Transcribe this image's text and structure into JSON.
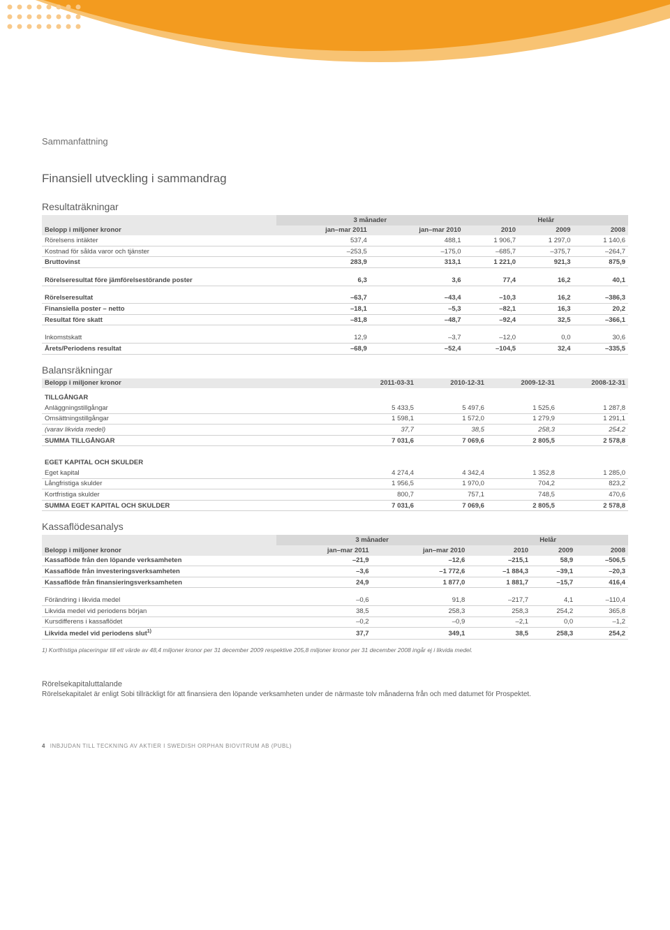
{
  "header_graphic": {
    "bg": "#ffffff",
    "arc_main": "#f39b1f",
    "arc_light": "#f8c373",
    "dots": "#f8c98a"
  },
  "section_label": "Sammanfattning",
  "main_title": "Finansiell utveckling i sammandrag",
  "tables": {
    "income": {
      "title": "Resultaträkningar",
      "belopp_label": "Belopp i miljoner kronor",
      "group1": "3 månader",
      "group2": "Helår",
      "cols": [
        "jan–mar 2011",
        "jan–mar 2010",
        "2010",
        "2009",
        "2008"
      ],
      "rows": [
        {
          "label": "Rörelsens intäkter",
          "v": [
            "537,4",
            "488,1",
            "1 906,7",
            "1 297,0",
            "1 140,6"
          ]
        },
        {
          "label": "Kostnad för sålda varor och tjänster",
          "v": [
            "–253,5",
            "–175,0",
            "–685,7",
            "–375,7",
            "–264,7"
          ]
        },
        {
          "label": "Bruttovinst",
          "v": [
            "283,9",
            "313,1",
            "1 221,0",
            "921,3",
            "875,9"
          ],
          "bold": true
        }
      ],
      "rows2": [
        {
          "label": "Rörelseresultat före jämförelsestörande poster",
          "v": [
            "6,3",
            "3,6",
            "77,4",
            "16,2",
            "40,1"
          ],
          "bold": true
        }
      ],
      "rows3": [
        {
          "label": "Rörelseresultat",
          "v": [
            "–63,7",
            "–43,4",
            "–10,3",
            "16,2",
            "–386,3"
          ],
          "bold": true
        },
        {
          "label": "Finansiella poster – netto",
          "v": [
            "–18,1",
            "–5,3",
            "–82,1",
            "16,3",
            "20,2"
          ],
          "bold": true
        },
        {
          "label": "Resultat före skatt",
          "v": [
            "–81,8",
            "–48,7",
            "–92,4",
            "32,5",
            "–366,1"
          ],
          "bold": true
        }
      ],
      "rows4": [
        {
          "label": "Inkomstskatt",
          "v": [
            "12,9",
            "–3,7",
            "–12,0",
            "0,0",
            "30,6"
          ]
        },
        {
          "label": "Årets/Periodens resultat",
          "v": [
            "–68,9",
            "–52,4",
            "–104,5",
            "32,4",
            "–335,5"
          ],
          "bold": true
        }
      ]
    },
    "balance": {
      "title": "Balansräkningar",
      "belopp_label": "Belopp i miljoner kronor",
      "cols": [
        "2011-03-31",
        "2010-12-31",
        "2009-12-31",
        "2008-12-31"
      ],
      "sec1_label": "TILLGÅNGAR",
      "rows1": [
        {
          "label": "Anläggningstillgångar",
          "v": [
            "5 433,5",
            "5 497,6",
            "1 525,6",
            "1 287,8"
          ]
        },
        {
          "label": "Omsättningstillgångar",
          "v": [
            "1 598,1",
            "1 572,0",
            "1 279,9",
            "1 291,1"
          ]
        },
        {
          "label": "(varav likvida medel)",
          "v": [
            "37,7",
            "38,5",
            "258,3",
            "254,2"
          ],
          "italic": true
        },
        {
          "label": "SUMMA TILLGÅNGAR",
          "v": [
            "7 031,6",
            "7 069,6",
            "2 805,5",
            "2 578,8"
          ],
          "bold": true
        }
      ],
      "sec2_label": "EGET KAPITAL OCH SKULDER",
      "rows2": [
        {
          "label": "Eget kapital",
          "v": [
            "4 274,4",
            "4 342,4",
            "1 352,8",
            "1 285,0"
          ]
        },
        {
          "label": "Långfristiga skulder",
          "v": [
            "1 956,5",
            "1 970,0",
            "704,2",
            "823,2"
          ]
        },
        {
          "label": "Kortfristiga skulder",
          "v": [
            "800,7",
            "757,1",
            "748,5",
            "470,6"
          ]
        },
        {
          "label": "SUMMA EGET KAPITAL OCH SKULDER",
          "v": [
            "7 031,6",
            "7 069,6",
            "2 805,5",
            "2 578,8"
          ],
          "bold": true
        }
      ]
    },
    "cashflow": {
      "title": "Kassaflödesanalys",
      "belopp_label": "Belopp i miljoner kronor",
      "group1": "3 månader",
      "group2": "Helår",
      "cols": [
        "jan–mar 2011",
        "jan–mar 2010",
        "2010",
        "2009",
        "2008"
      ],
      "rows1": [
        {
          "label": "Kassaflöde från den löpande verksamheten",
          "v": [
            "–21,9",
            "–12,6",
            "–215,1",
            "58,9",
            "–506,5"
          ],
          "bold": true
        },
        {
          "label": "Kassaflöde från investeringsverksamheten",
          "v": [
            "–3,6",
            "–1 772,6",
            "–1 884,3",
            "–39,1",
            "–20,3"
          ],
          "bold": true
        },
        {
          "label": "Kassaflöde från finansieringsverksamheten",
          "v": [
            "24,9",
            "1 877,0",
            "1 881,7",
            "–15,7",
            "416,4"
          ],
          "bold": true
        }
      ],
      "rows2": [
        {
          "label": "Förändring i likvida medel",
          "v": [
            "–0,6",
            "91,8",
            "–217,7",
            "4,1",
            "–110,4"
          ]
        },
        {
          "label": "Likvida medel vid periodens början",
          "v": [
            "38,5",
            "258,3",
            "258,3",
            "254,2",
            "365,8"
          ]
        },
        {
          "label": "Kursdifferens i kassaflödet",
          "v": [
            "–0,2",
            "–0,9",
            "–2,1",
            "0,0",
            "–1,2"
          ]
        }
      ],
      "rows3_label": "Likvida medel vid periodens slut",
      "rows3_sup": "1)",
      "rows3_v": [
        "37,7",
        "349,1",
        "38,5",
        "258,3",
        "254,2"
      ]
    }
  },
  "footnote": "1)  Kortfristiga placeringar till ett värde av 48,4 miljoner kronor per 31 december 2009 respektive 205,8 miljoner kronor per 31 december 2008 ingår ej i likvida medel.",
  "statement": {
    "title": "Rörelsekapitaluttalande",
    "body": "Rörelsekapitalet är enligt Sobi tillräckligt för att finansiera den löpande verksamheten under de närmaste tolv månaderna från och med datumet för Prospektet."
  },
  "footer": {
    "page": "4",
    "text": "INBJUDAN TILL TECKNING AV AKTIER I SWEDISH ORPHAN BIOVITRUM AB (PUBL)"
  },
  "styling": {
    "th_bg": "#e8e8e8",
    "th_group_bg": "#d8d8d8",
    "row_border": "#d0d0d0",
    "text_color": "#4a4a4a",
    "label_color": "#6e6e6e",
    "base_fontsize": 9.5
  }
}
